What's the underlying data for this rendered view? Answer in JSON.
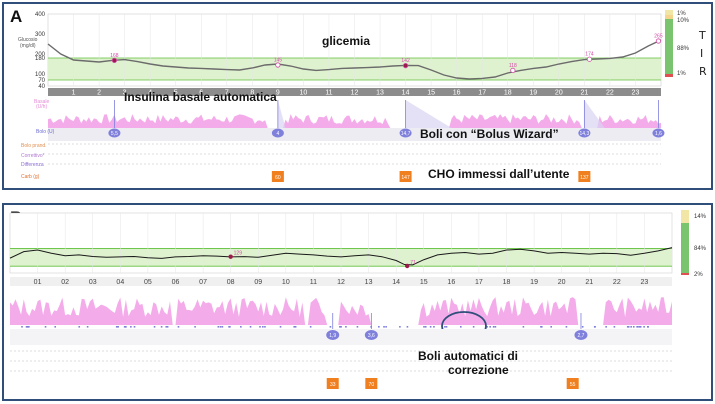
{
  "panel_a": {
    "label": "A",
    "annotations": {
      "glicemia": "glicemia",
      "basal": "Insulina basale automatica",
      "bolus": "Boli con “Bolus Wizard”",
      "cho": "CHO immessi dall’utente"
    },
    "tir": {
      "high": "1%",
      "high2": "10%",
      "in_range": "88%",
      "low": "1%",
      "letters": [
        "T",
        "I",
        "R"
      ]
    },
    "row_labels": {
      "glucose": "Glucosio\n(mg/dl)",
      "basal": "Basale\n(U/h)",
      "bolus": "Bolo (U)",
      "bolo_prand": "Bolo prand.",
      "correttivo": "Correttivo*",
      "differenza": "Differenza",
      "carb": "Carb (g)"
    },
    "colors": {
      "glucose_line": "#6b6b6b",
      "target_band": "#dff2cf",
      "basal": "#f29ce6",
      "bolus": "#7f7fdc",
      "carb": "#f07f1f",
      "axis_bar": "#8c8c8c"
    }
  },
  "panel_b": {
    "label": "B",
    "annotations": {
      "auto_bolus": "Boli automatici di",
      "auto_bolus2": "correzione"
    },
    "tir": {
      "high": "14%",
      "in_range": "84%",
      "low": "2%"
    },
    "colors": {
      "glucose_line": "#1a1a1a",
      "target_band": "#dff2cf",
      "basal": "#f29ce6",
      "bolus": "#7f7fdc",
      "carb": "#f07f1f",
      "circle": "#2f4f7a"
    }
  },
  "chart_data": [
    {
      "type": "line",
      "panel": "A",
      "x_unit": "hour",
      "y_ticks": [
        400,
        300,
        200,
        180,
        100,
        70,
        40
      ],
      "x_ticks": [
        "1",
        "2",
        "3",
        "4",
        "5",
        "6",
        "7",
        "8",
        "9",
        "10",
        "11",
        "12",
        "13",
        "14",
        "15",
        "16",
        "17",
        "18",
        "19",
        "20",
        "21",
        "22",
        "23"
      ],
      "ylim": [
        40,
        400
      ],
      "series": [
        {
          "x": [
            0,
            0.5,
            1,
            1.5,
            2,
            2.5,
            3,
            3.5,
            4,
            4.5,
            5,
            5.5,
            6,
            6.5,
            7,
            7.5,
            8,
            8.5,
            9,
            9.5,
            10,
            10.5,
            11,
            11.5,
            12,
            12.5,
            13,
            13.5,
            14,
            14.5,
            15,
            15.5,
            16,
            16.5,
            17,
            17.5,
            18,
            18.5,
            19,
            19.5,
            20,
            20.5,
            21,
            21.5,
            22,
            22.5,
            23,
            23.5,
            24
          ],
          "y": [
            250,
            200,
            170,
            165,
            160,
            168,
            172,
            162,
            150,
            140,
            135,
            130,
            128,
            125,
            122,
            120,
            130,
            145,
            150,
            140,
            125,
            118,
            122,
            128,
            130,
            132,
            135,
            140,
            143,
            142,
            120,
            95,
            80,
            75,
            78,
            85,
            105,
            118,
            128,
            135,
            150,
            162,
            172,
            175,
            178,
            185,
            205,
            240,
            270
          ]
        }
      ],
      "points": [
        {
          "x": 2.6,
          "y": 168,
          "label": "168"
        },
        {
          "x": 9.0,
          "y": 145,
          "label": "145"
        },
        {
          "x": 14.0,
          "y": 142,
          "label": "142"
        },
        {
          "x": 18.2,
          "y": 118,
          "label": "118"
        },
        {
          "x": 21.2,
          "y": 174,
          "label": "174"
        },
        {
          "x": 23.9,
          "y": 265,
          "label": "265"
        }
      ],
      "bolus": [
        {
          "x": 2.6,
          "value": "5,5"
        },
        {
          "x": 9.0,
          "value": "4"
        },
        {
          "x": 14.0,
          "value": "14,7"
        },
        {
          "x": 21.0,
          "value": "14,3"
        },
        {
          "x": 23.9,
          "value": "1,6"
        }
      ],
      "carbs": [
        {
          "x": 9.0,
          "value": "60"
        },
        {
          "x": 14.0,
          "value": "147"
        },
        {
          "x": 21.0,
          "value": "137"
        }
      ]
    },
    {
      "type": "line",
      "panel": "B",
      "x_unit": "hour",
      "x_ticks": [
        "01",
        "02",
        "03",
        "04",
        "05",
        "06",
        "07",
        "08",
        "09",
        "10",
        "11",
        "12",
        "13",
        "14",
        "15",
        "16",
        "17",
        "18",
        "19",
        "20",
        "21",
        "22",
        "23"
      ],
      "ylim": [
        40,
        400
      ],
      "series": [
        {
          "x": [
            0,
            0.5,
            1,
            1.5,
            2,
            2.5,
            3,
            3.5,
            4,
            4.5,
            5,
            5.5,
            6,
            6.5,
            7,
            7.5,
            8,
            8.5,
            9,
            9.5,
            10,
            10.5,
            11,
            11.5,
            12,
            12.5,
            13,
            13.5,
            14,
            14.3,
            14.6,
            15,
            15.5,
            16,
            16.5,
            17,
            17.5,
            18,
            18.5,
            19,
            19.5,
            20,
            20.5,
            21,
            21.5,
            22,
            22.5,
            23,
            23.5,
            24
          ],
          "y": [
            120,
            160,
            170,
            150,
            135,
            140,
            130,
            125,
            128,
            130,
            122,
            118,
            128,
            130,
            135,
            132,
            128,
            129,
            125,
            138,
            150,
            145,
            140,
            132,
            128,
            135,
            140,
            128,
            105,
            80,
            78,
            110,
            140,
            150,
            155,
            145,
            150,
            170,
            175,
            165,
            150,
            155,
            150,
            145,
            150,
            148,
            138,
            150,
            165,
            185
          ]
        }
      ],
      "points": [
        {
          "x": 8.0,
          "y": 129,
          "label": "129"
        },
        {
          "x": 14.4,
          "y": 71,
          "label": "71"
        }
      ],
      "bolus": [
        {
          "x": 11.7,
          "value": "1,9"
        },
        {
          "x": 13.1,
          "value": "3,6"
        },
        {
          "x": 20.7,
          "value": "2,7"
        }
      ],
      "carbs": [
        {
          "x": 11.7,
          "value": "33"
        },
        {
          "x": 13.1,
          "value": "70"
        },
        {
          "x": 20.4,
          "value": "55"
        }
      ]
    }
  ]
}
